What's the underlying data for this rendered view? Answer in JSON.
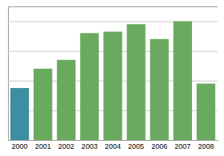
{
  "chart_data": {
    "type": "bar",
    "categories": [
      "2000",
      "2001",
      "2002",
      "2003",
      "2004",
      "2005",
      "2006",
      "2007",
      "2008"
    ],
    "values": [
      35,
      48,
      54,
      72,
      73,
      78,
      68,
      80,
      38
    ],
    "colors": [
      "#3b8fa0",
      "#6aaa5e",
      "#6aaa5e",
      "#6aaa5e",
      "#6aaa5e",
      "#6aaa5e",
      "#6aaa5e",
      "#6aaa5e",
      "#6aaa5e"
    ],
    "ylim": [
      0,
      90
    ],
    "yticks": [
      20,
      40,
      60,
      80
    ],
    "grid": true,
    "tick_labels": "x"
  }
}
